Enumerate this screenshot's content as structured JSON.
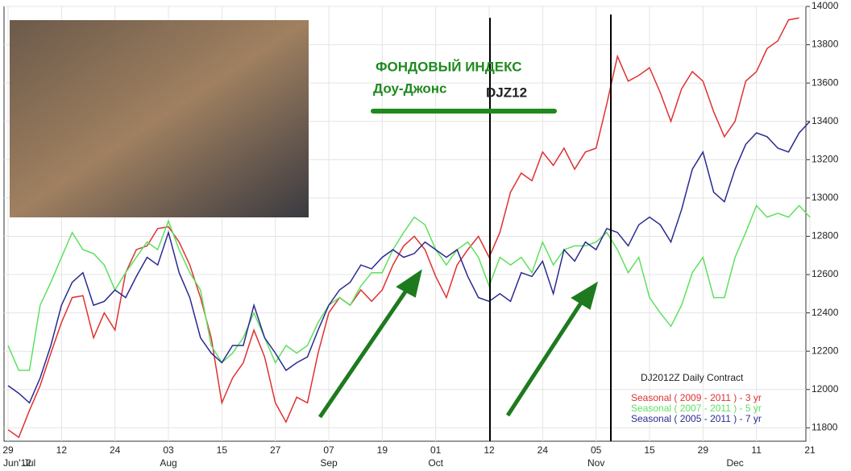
{
  "chart_data": {
    "type": "line",
    "title": "ФОНДОВЫЙ ИНДЕКС",
    "subtitle": "Доу-Джонс",
    "annotations": [
      "DJZ12"
    ],
    "legend_title": "DJ2012Z Daily Contract",
    "categories": [
      "29",
      null,
      null,
      null,
      null,
      "12",
      null,
      null,
      null,
      null,
      "24",
      null,
      null,
      null,
      null,
      "03",
      null,
      null,
      null,
      null,
      "15",
      null,
      null,
      null,
      null,
      "27",
      null,
      null,
      null,
      null,
      "07",
      null,
      null,
      null,
      null,
      "19",
      null,
      null,
      null,
      null,
      "01",
      null,
      null,
      null,
      null,
      "12",
      null,
      null,
      null,
      null,
      "24",
      null,
      null,
      null,
      null,
      "05",
      null,
      null,
      null,
      null,
      "15",
      null,
      null,
      null,
      null,
      "29",
      null,
      null,
      null,
      null,
      "11",
      null,
      null,
      null,
      null,
      "21"
    ],
    "months": [
      "Jun'12",
      null,
      "Jul",
      null,
      null,
      null,
      null,
      null,
      null,
      null,
      null,
      null,
      null,
      null,
      null,
      "Aug",
      null,
      null,
      null,
      null,
      null,
      null,
      null,
      null,
      null,
      null,
      null,
      null,
      null,
      null,
      "Sep",
      null,
      null,
      null,
      null,
      null,
      null,
      null,
      null,
      null,
      "Oct",
      null,
      null,
      null,
      null,
      null,
      null,
      null,
      null,
      null,
      null,
      null,
      null,
      null,
      null,
      "Nov",
      null,
      null,
      null,
      null,
      null,
      null,
      null,
      null,
      null,
      null,
      null,
      null,
      "Dec",
      null,
      null,
      null,
      null,
      null,
      null,
      null
    ],
    "series": [
      {
        "name": "Seasonal ( 2009 - 2011 ) - 3 yr",
        "color": "#e03030",
        "values": [
          11790,
          11750,
          11890,
          12020,
          12190,
          12350,
          12480,
          12490,
          12270,
          12400,
          12310,
          12610,
          12730,
          12750,
          12840,
          12850,
          12770,
          12650,
          12480,
          12270,
          11930,
          12060,
          12140,
          12310,
          12170,
          11930,
          11830,
          11960,
          11930,
          12190,
          12400,
          12480,
          12440,
          12520,
          12460,
          12520,
          12650,
          12750,
          12800,
          12730,
          12590,
          12480,
          12650,
          12730,
          12800,
          12690,
          12820,
          13030,
          13130,
          13090,
          13240,
          13170,
          13260,
          13150,
          13240,
          13260,
          13490,
          13740,
          13610,
          13640,
          13680,
          13550,
          13400,
          13570,
          13660,
          13610,
          13450,
          13320,
          13400,
          13610,
          13660,
          13780,
          13820,
          13930,
          13940,
          null
        ]
      },
      {
        "name": "Seasonal ( 2007 - 2011 ) - 5 yr",
        "color": "#5ee05e",
        "values": [
          12230,
          12100,
          12100,
          12440,
          12560,
          12690,
          12820,
          12730,
          12710,
          12650,
          12520,
          12610,
          12690,
          12770,
          12730,
          12880,
          12730,
          12610,
          12520,
          12230,
          12140,
          12190,
          12270,
          12400,
          12270,
          12140,
          12230,
          12190,
          12230,
          12350,
          12440,
          12480,
          12440,
          12540,
          12610,
          12610,
          12730,
          12820,
          12900,
          12860,
          12730,
          12650,
          12730,
          12770,
          12690,
          12540,
          12690,
          12650,
          12690,
          12610,
          12770,
          12650,
          12730,
          12750,
          12750,
          12770,
          12820,
          12730,
          12610,
          12690,
          12480,
          12400,
          12330,
          12440,
          12610,
          12690,
          12480,
          12480,
          12690,
          12820,
          12960,
          12900,
          12920,
          12900,
          12960,
          12900
        ]
      },
      {
        "name": "Seasonal ( 2005 - 2011 ) - 7 yr",
        "color": "#2a2a90",
        "values": [
          12020,
          11980,
          11930,
          12060,
          12230,
          12440,
          12560,
          12610,
          12440,
          12460,
          12520,
          12480,
          12590,
          12690,
          12650,
          12820,
          12610,
          12480,
          12270,
          12190,
          12140,
          12230,
          12230,
          12440,
          12270,
          12190,
          12100,
          12140,
          12170,
          12310,
          12440,
          12520,
          12560,
          12650,
          12630,
          12690,
          12730,
          12690,
          12710,
          12770,
          12730,
          12690,
          12730,
          12590,
          12480,
          12460,
          12500,
          12460,
          12610,
          12590,
          12670,
          12500,
          12730,
          12670,
          12770,
          12730,
          12840,
          12820,
          12750,
          12860,
          12900,
          12860,
          12770,
          12940,
          13150,
          13240,
          13030,
          12980,
          13150,
          13280,
          13340,
          13320,
          13260,
          13240,
          13340,
          13400
        ]
      }
    ],
    "ylim": [
      11730,
      14000
    ],
    "yticks": [
      11800,
      12000,
      12200,
      12400,
      12600,
      12800,
      13000,
      13200,
      13400,
      13600,
      13800,
      14000
    ],
    "grid": true
  }
}
